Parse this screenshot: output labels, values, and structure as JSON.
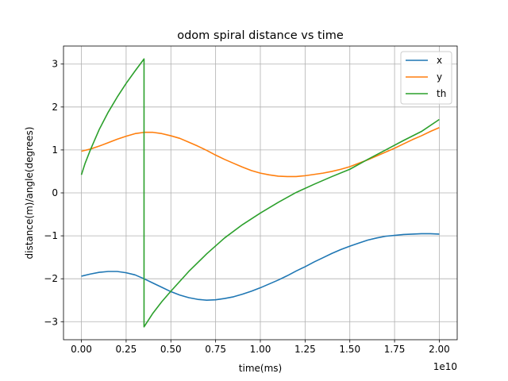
{
  "chart_data": {
    "type": "line",
    "title": "odom spiral distance vs time",
    "xlabel": "time(ms)",
    "ylabel": "distance(m)/angle(degrees)",
    "x_offset_label": "1e10",
    "xlim": [
      -0.1,
      2.1
    ],
    "ylim": [
      -3.42,
      3.42
    ],
    "x_ticks": [
      0.0,
      0.25,
      0.5,
      0.75,
      1.0,
      1.25,
      1.5,
      1.75,
      2.0
    ],
    "x_tick_labels": [
      "0.00",
      "0.25",
      "0.50",
      "0.75",
      "1.00",
      "1.25",
      "1.50",
      "1.75",
      "2.00"
    ],
    "y_ticks": [
      -3,
      -2,
      -1,
      0,
      1,
      2,
      3
    ],
    "y_tick_labels": [
      "−3",
      "−2",
      "−1",
      "0",
      "1",
      "2",
      "3"
    ],
    "grid": true,
    "legend_position": "top-right",
    "series": [
      {
        "name": "x",
        "color": "#1f77b4",
        "points": [
          [
            0.0,
            -1.94
          ],
          [
            0.05,
            -1.89
          ],
          [
            0.1,
            -1.85
          ],
          [
            0.15,
            -1.83
          ],
          [
            0.2,
            -1.83
          ],
          [
            0.25,
            -1.86
          ],
          [
            0.3,
            -1.91
          ],
          [
            0.35,
            -2.0
          ],
          [
            0.4,
            -2.1
          ],
          [
            0.45,
            -2.2
          ],
          [
            0.5,
            -2.3
          ],
          [
            0.55,
            -2.38
          ],
          [
            0.6,
            -2.44
          ],
          [
            0.65,
            -2.48
          ],
          [
            0.7,
            -2.5
          ],
          [
            0.75,
            -2.49
          ],
          [
            0.8,
            -2.46
          ],
          [
            0.85,
            -2.42
          ],
          [
            0.9,
            -2.36
          ],
          [
            0.95,
            -2.29
          ],
          [
            1.0,
            -2.21
          ],
          [
            1.05,
            -2.12
          ],
          [
            1.1,
            -2.03
          ],
          [
            1.15,
            -1.93
          ],
          [
            1.2,
            -1.82
          ],
          [
            1.25,
            -1.72
          ],
          [
            1.3,
            -1.61
          ],
          [
            1.35,
            -1.51
          ],
          [
            1.4,
            -1.41
          ],
          [
            1.45,
            -1.32
          ],
          [
            1.5,
            -1.24
          ],
          [
            1.55,
            -1.17
          ],
          [
            1.6,
            -1.1
          ],
          [
            1.65,
            -1.05
          ],
          [
            1.7,
            -1.01
          ],
          [
            1.75,
            -0.99
          ],
          [
            1.8,
            -0.97
          ],
          [
            1.85,
            -0.96
          ],
          [
            1.9,
            -0.95
          ],
          [
            1.95,
            -0.95
          ],
          [
            2.0,
            -0.96
          ]
        ]
      },
      {
        "name": "y",
        "color": "#ff7f0e",
        "points": [
          [
            0.0,
            0.97
          ],
          [
            0.05,
            1.02
          ],
          [
            0.1,
            1.09
          ],
          [
            0.15,
            1.17
          ],
          [
            0.2,
            1.25
          ],
          [
            0.25,
            1.32
          ],
          [
            0.3,
            1.38
          ],
          [
            0.35,
            1.41
          ],
          [
            0.4,
            1.41
          ],
          [
            0.45,
            1.38
          ],
          [
            0.5,
            1.33
          ],
          [
            0.55,
            1.27
          ],
          [
            0.6,
            1.18
          ],
          [
            0.65,
            1.09
          ],
          [
            0.7,
            0.99
          ],
          [
            0.75,
            0.88
          ],
          [
            0.8,
            0.78
          ],
          [
            0.85,
            0.69
          ],
          [
            0.9,
            0.6
          ],
          [
            0.95,
            0.52
          ],
          [
            1.0,
            0.46
          ],
          [
            1.05,
            0.42
          ],
          [
            1.1,
            0.39
          ],
          [
            1.15,
            0.38
          ],
          [
            1.2,
            0.38
          ],
          [
            1.25,
            0.4
          ],
          [
            1.3,
            0.43
          ],
          [
            1.35,
            0.46
          ],
          [
            1.4,
            0.5
          ],
          [
            1.45,
            0.55
          ],
          [
            1.5,
            0.61
          ],
          [
            1.55,
            0.69
          ],
          [
            1.6,
            0.77
          ],
          [
            1.65,
            0.86
          ],
          [
            1.7,
            0.95
          ],
          [
            1.75,
            1.04
          ],
          [
            1.8,
            1.14
          ],
          [
            1.85,
            1.24
          ],
          [
            1.9,
            1.33
          ],
          [
            1.95,
            1.43
          ],
          [
            2.0,
            1.52
          ]
        ]
      },
      {
        "name": "th",
        "color": "#2ca02c",
        "points": [
          [
            0.0,
            0.42
          ],
          [
            0.02,
            0.68
          ],
          [
            0.05,
            1.0
          ],
          [
            0.1,
            1.48
          ],
          [
            0.15,
            1.88
          ],
          [
            0.2,
            2.23
          ],
          [
            0.25,
            2.55
          ],
          [
            0.3,
            2.84
          ],
          [
            0.35,
            3.12
          ],
          [
            0.35,
            -3.12
          ],
          [
            0.4,
            -2.8
          ],
          [
            0.45,
            -2.53
          ],
          [
            0.5,
            -2.29
          ],
          [
            0.6,
            -1.83
          ],
          [
            0.7,
            -1.42
          ],
          [
            0.8,
            -1.05
          ],
          [
            0.9,
            -0.74
          ],
          [
            1.0,
            -0.47
          ],
          [
            1.1,
            -0.22
          ],
          [
            1.2,
            0.01
          ],
          [
            1.3,
            0.2
          ],
          [
            1.4,
            0.38
          ],
          [
            1.5,
            0.55
          ],
          [
            1.6,
            0.78
          ],
          [
            1.7,
            1.0
          ],
          [
            1.8,
            1.22
          ],
          [
            1.9,
            1.43
          ],
          [
            2.0,
            1.71
          ]
        ]
      }
    ]
  }
}
